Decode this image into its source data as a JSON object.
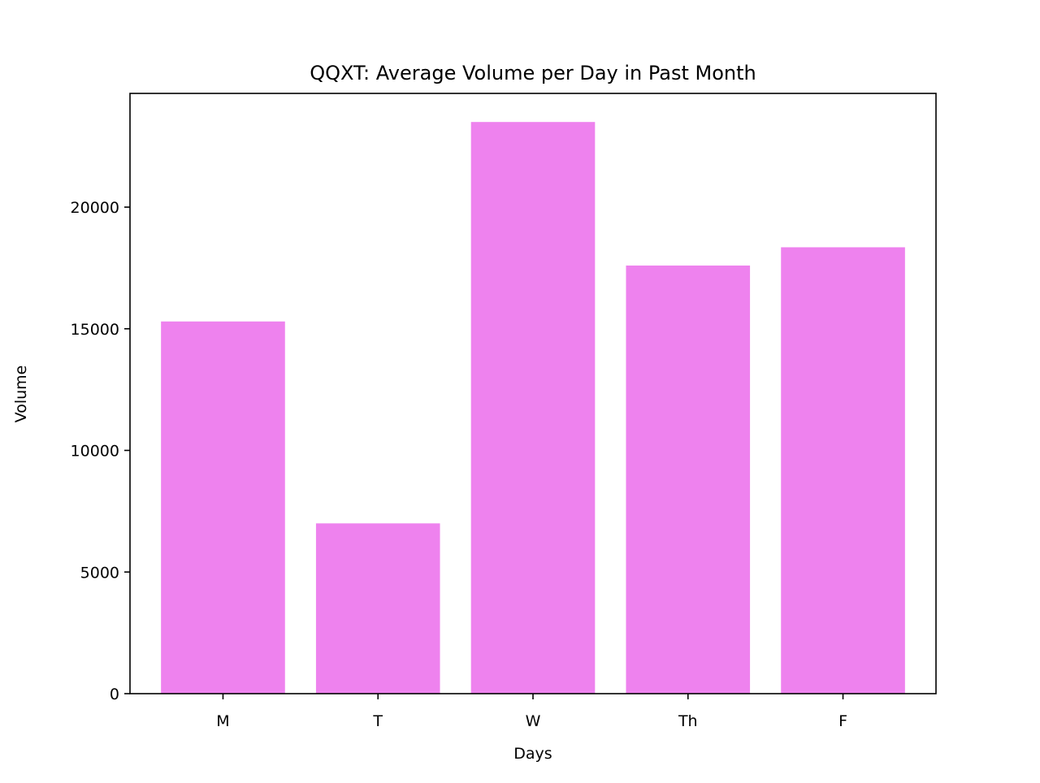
{
  "chart_data": {
    "type": "bar",
    "title": "QQXT: Average Volume per Day in Past Month",
    "xlabel": "Days",
    "ylabel": "Volume",
    "categories": [
      "M",
      "T",
      "W",
      "Th",
      "F"
    ],
    "values": [
      15300,
      7000,
      23500,
      17600,
      18350
    ],
    "ylim": [
      0,
      24675
    ],
    "yticks": [
      0,
      5000,
      10000,
      15000,
      20000
    ],
    "ytick_labels": [
      "0",
      "5000",
      "10000",
      "15000",
      "20000"
    ],
    "bar_color": "#ee82ee",
    "grid": false
  }
}
